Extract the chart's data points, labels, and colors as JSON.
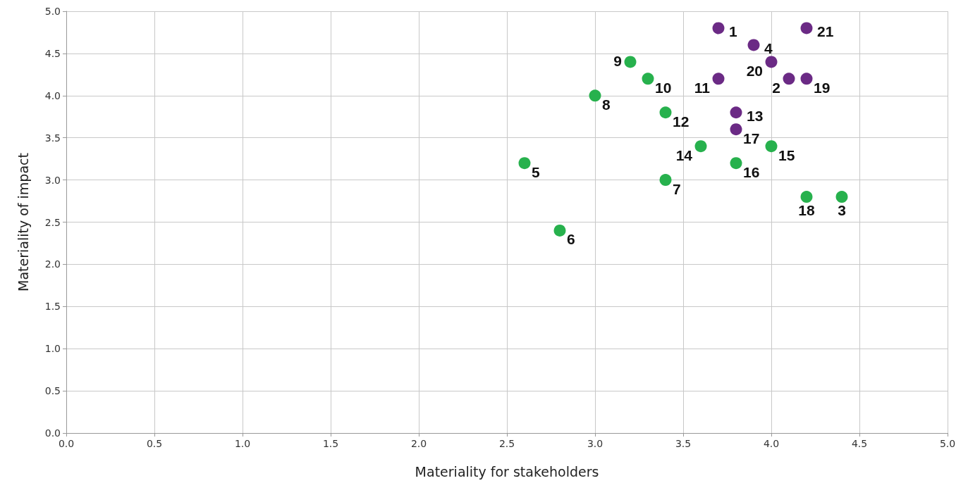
{
  "chart_data": {
    "type": "scatter",
    "xlabel": "Materiality for stakeholders",
    "ylabel": "Materiality of impact",
    "xlim": [
      0,
      5
    ],
    "ylim": [
      0,
      5
    ],
    "xticks": [
      {
        "value": 0,
        "label": "0.0"
      },
      {
        "value": 0.5,
        "label": "0.5"
      },
      {
        "value": 1,
        "label": "1.0"
      },
      {
        "value": 1.5,
        "label": "1.5"
      },
      {
        "value": 2,
        "label": "2.0"
      },
      {
        "value": 2.5,
        "label": "2.5"
      },
      {
        "value": 3,
        "label": "3.0"
      },
      {
        "value": 3.5,
        "label": "3.5"
      },
      {
        "value": 4,
        "label": "4.0"
      },
      {
        "value": 4.5,
        "label": "4.5"
      },
      {
        "value": 5,
        "label": "5.0"
      }
    ],
    "yticks": [
      {
        "value": 0,
        "label": "0.0"
      },
      {
        "value": 0.5,
        "label": "0.5"
      },
      {
        "value": 1,
        "label": "1.0"
      },
      {
        "value": 1.5,
        "label": "1.5"
      },
      {
        "value": 2,
        "label": "2.0"
      },
      {
        "value": 2.5,
        "label": "2.5"
      },
      {
        "value": 3,
        "label": "3.0"
      },
      {
        "value": 3.5,
        "label": "3.5"
      },
      {
        "value": 4,
        "label": "4.0"
      },
      {
        "value": 4.5,
        "label": "4.5"
      },
      {
        "value": 5,
        "label": "5.0"
      }
    ],
    "grid": true,
    "marker": "circle",
    "series": [
      {
        "color": "#6b2a85",
        "x": [
          3.7,
          3.9,
          4.2,
          4.0,
          4.1,
          4.2,
          3.7,
          3.8,
          3.8
        ],
        "values": [
          4.8,
          4.6,
          4.8,
          4.4,
          4.2,
          4.2,
          4.2,
          3.8,
          3.6
        ]
      },
      {
        "color": "#27b14d",
        "x": [
          3.2,
          3.3,
          3.0,
          3.4,
          3.6,
          4.0,
          3.8,
          2.6,
          3.4,
          4.2,
          4.4,
          2.8
        ],
        "values": [
          4.4,
          4.2,
          4.0,
          3.8,
          3.4,
          3.4,
          3.2,
          3.2,
          3.0,
          2.8,
          2.8,
          2.4
        ]
      }
    ],
    "annotations": [
      {
        "text": "1",
        "x": 3.7,
        "y": 4.8
      },
      {
        "text": "4",
        "x": 3.9,
        "y": 4.6
      },
      {
        "text": "21",
        "x": 4.2,
        "y": 4.8
      },
      {
        "text": "20",
        "x": 4.0,
        "y": 4.4
      },
      {
        "text": "2",
        "x": 4.1,
        "y": 4.2
      },
      {
        "text": "19",
        "x": 4.2,
        "y": 4.2
      },
      {
        "text": "11",
        "x": 3.7,
        "y": 4.2
      },
      {
        "text": "13",
        "x": 3.8,
        "y": 3.8
      },
      {
        "text": "17",
        "x": 3.8,
        "y": 3.6
      },
      {
        "text": "9",
        "x": 3.2,
        "y": 4.4
      },
      {
        "text": "10",
        "x": 3.3,
        "y": 4.2
      },
      {
        "text": "8",
        "x": 3.0,
        "y": 4.0
      },
      {
        "text": "12",
        "x": 3.4,
        "y": 3.8
      },
      {
        "text": "14",
        "x": 3.6,
        "y": 3.4
      },
      {
        "text": "15",
        "x": 4.0,
        "y": 3.4
      },
      {
        "text": "16",
        "x": 3.8,
        "y": 3.2
      },
      {
        "text": "5",
        "x": 2.6,
        "y": 3.2
      },
      {
        "text": "7",
        "x": 3.4,
        "y": 3.0
      },
      {
        "text": "18",
        "x": 4.2,
        "y": 2.8
      },
      {
        "text": "3",
        "x": 4.4,
        "y": 2.8
      },
      {
        "text": "6",
        "x": 2.8,
        "y": 2.4
      }
    ]
  }
}
